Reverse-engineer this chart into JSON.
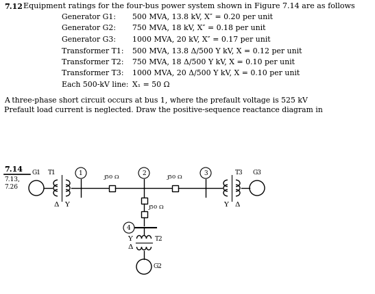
{
  "title_num": "7.12",
  "title_text": "Equipment ratings for the four-bus power system shown in Figure 7.14 are as follows",
  "items": [
    [
      "Generator G1:",
      "500 MVA, 13.8 kV, X″ = 0.20 per unit"
    ],
    [
      "Generator G2:",
      "750 MVA, 18 kV, X″ = 0.18 per unit"
    ],
    [
      "Generator G3:",
      "1000 MVA, 20 kV, X″ = 0.17 per unit"
    ],
    [
      "Transformer T1:",
      "500 MVA, 13.8 Δ/500 Y kV, X = 0.12 per unit"
    ],
    [
      "Transformer T2:",
      "750 MVA, 18 Δ/500 Y kV, X = 0.10 per unit"
    ],
    [
      "Transformer T3:",
      "1000 MVA, 20 Δ/500 Y kV, X = 0.10 per unit"
    ],
    [
      "Each 500-kV line:",
      "X₁ = 50 Ω"
    ]
  ],
  "para1": "A three-phase short circuit occurs at bus 1, where the prefault voltage is 525 kV",
  "para2": "Prefault load current is neglected. Draw the positive-sequence reactance diagram in",
  "fig_label": "7.14",
  "background": "#ffffff",
  "text_color": "#000000",
  "title_fs": 8.0,
  "item_label_fs": 7.8,
  "item_val_fs": 7.8,
  "para_fs": 7.8,
  "circ_fs": 7.0,
  "label_fs": 6.5
}
